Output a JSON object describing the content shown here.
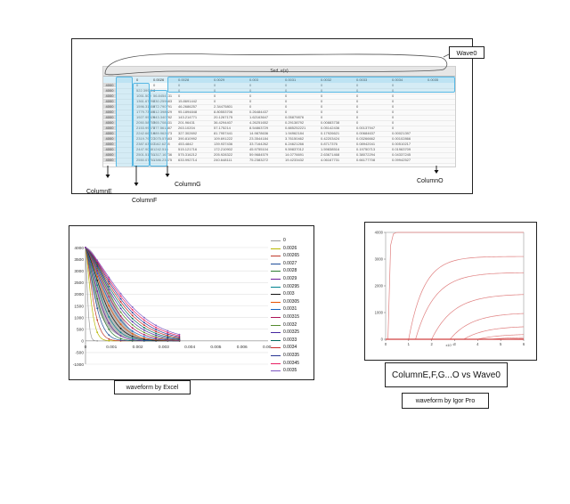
{
  "top_panel": {
    "wave_label": "Wave0",
    "sheet_header": "Sed. e(s)",
    "column_values": [
      "0",
      "0.0026",
      "0.0028",
      "0.0029",
      "0.003",
      "0.0031",
      "0.0032",
      "0.0033",
      "0.0034",
      "0.0035"
    ],
    "column_labels": {
      "e": "ColumnE",
      "f": "ColumnF",
      "g": "ColumnG",
      "o": "ColumnO"
    },
    "rows": [
      [
        "4000",
        "0",
        "0",
        "0",
        "0",
        "0",
        "0",
        "0",
        "0",
        "0"
      ],
      [
        "4000",
        "522.399914",
        "0",
        "0",
        "0",
        "0",
        "0",
        "0",
        "0",
        "0"
      ],
      [
        "4000",
        "1051.509",
        "56.8454131",
        "0",
        "0",
        "0",
        "0",
        "0",
        "0",
        "0"
      ],
      [
        "4000",
        "1361.67299",
        "230.259683",
        "15.8691442",
        "0",
        "0",
        "0",
        "0",
        "0",
        "0"
      ],
      [
        "4000",
        "1596.31656",
        "372.790791",
        "46.2686257",
        "2.34475801",
        "0",
        "0",
        "0",
        "0",
        "0"
      ],
      [
        "4000",
        "1779.73686",
        "512.398029",
        "95.1894848",
        "8.80553706",
        "0.26484437",
        "0",
        "0",
        "0",
        "0"
      ],
      [
        "4000",
        "1927.99929",
        "643.340782",
        "143.214771",
        "20.1267175",
        "1.62163647",
        "0.05879876",
        "0",
        "0",
        "0"
      ],
      [
        "4000",
        "2050.58755",
        "765.708431",
        "201.96431",
        "36.4294407",
        "4.26251652",
        "0.29138792",
        "0.00883738",
        "0",
        "0"
      ],
      [
        "4000",
        "2153.99673",
        "877.561487",
        "263.10204",
        "57.175214",
        "8.54863729",
        "0.885252221",
        "0.05142436",
        "0.00137947",
        "0"
      ],
      [
        "4000",
        "2242.66216",
        "989.962673",
        "327.302692",
        "81.7957441",
        "14.9878636",
        "1.94962184",
        "0.17926621",
        "0.00684637",
        "0.00021397"
      ],
      [
        "4000",
        "2319.79727",
        "1075.57683",
        "390.810992",
        "109.691222",
        "23.3544184",
        "3.76150462",
        "0.42203424",
        "0.03266662",
        "0.00102866"
      ],
      [
        "4000",
        "2387.63607",
        "1162.6278",
        "453.4842",
        "139.937436",
        "33.7164262",
        "6.24621266",
        "0.8717376",
        "0.08942041",
        "0.00510217"
      ],
      [
        "4000",
        "2447.9088",
        "1242.516",
        "515.121716",
        "172.210902",
        "45.9755104",
        "9.59837012",
        "1.59838516",
        "0.19750713",
        "0.01963709"
      ],
      [
        "4000",
        "2501.51751",
        "1317.16736",
        "575.316212",
        "205.928322",
        "59.9684579",
        "14.0776691",
        "2.63671468",
        "0.38072294",
        "0.04337245"
      ],
      [
        "4000",
        "2550.07761",
        "1386.23475",
        "633.992714",
        "240.648111",
        "75.2383272",
        "19.4233432",
        "4.06167731",
        "0.66177708",
        "0.09942527"
      ]
    ]
  },
  "excel_chart": {
    "caption": "waveform by Excel",
    "chart_data": {
      "type": "line",
      "y_ticks": [
        "4000",
        "3500",
        "3000",
        "2500",
        "2000",
        "1500",
        "1000",
        "500",
        "0",
        "-500",
        "-1000"
      ],
      "x_ticks": [
        "0",
        "0.001",
        "0.002",
        "0.003",
        "0.004",
        "0.005",
        "0.006",
        "0.007"
      ],
      "ylim": [
        -1000,
        4000
      ],
      "xlim": [
        0,
        0.007
      ],
      "grid": true,
      "legend_position": "right",
      "series": [
        {
          "name": "0",
          "color": "#9a9a9a",
          "decay": 3e-05
        },
        {
          "name": "0.0026",
          "color": "#b8b800",
          "decay": 0.00012
        },
        {
          "name": "0.00265",
          "color": "#c0392b",
          "decay": 0.00018
        },
        {
          "name": "0.0027",
          "color": "#1f4e9a",
          "decay": 0.00024
        },
        {
          "name": "0.0028",
          "color": "#2e7d32",
          "decay": 0.0003
        },
        {
          "name": "0.0029",
          "color": "#6a1b9a",
          "decay": 0.00036
        },
        {
          "name": "0.00295",
          "color": "#00838f",
          "decay": 0.00042
        },
        {
          "name": "0.003",
          "color": "#111111",
          "decay": 0.00048
        },
        {
          "name": "0.00305",
          "color": "#e65100",
          "decay": 0.00054
        },
        {
          "name": "0.0031",
          "color": "#1565c0",
          "decay": 0.0006
        },
        {
          "name": "0.00315",
          "color": "#ad1457",
          "decay": 0.00066
        },
        {
          "name": "0.0032",
          "color": "#558b2f",
          "decay": 0.00072
        },
        {
          "name": "0.00325",
          "color": "#4527a0",
          "decay": 0.00078
        },
        {
          "name": "0.0033",
          "color": "#00695c",
          "decay": 0.00084
        },
        {
          "name": "0.0034",
          "color": "#c62828",
          "decay": 0.0009
        },
        {
          "name": "0.00335",
          "color": "#283593",
          "decay": 0.00096
        },
        {
          "name": "0.00345",
          "color": "#e91e63",
          "decay": 0.00102
        },
        {
          "name": "0.0035",
          "color": "#7e57c2",
          "decay": 0.00108
        }
      ]
    }
  },
  "igor_chart": {
    "caption_box": "ColumnE,F,G...O vs Wave0",
    "caption": "waveform by Igor Pro",
    "chart_data": {
      "type": "line",
      "y_ticks": [
        "4000",
        "3000",
        "2000",
        "1000",
        "0"
      ],
      "x_ticks": [
        "0",
        "1",
        "2",
        "3",
        "4",
        "5",
        "6"
      ],
      "x_exponent": "x10⁻³",
      "ylim": [
        0,
        4000
      ],
      "xlim": [
        0,
        6
      ],
      "series": [
        {
          "start": 0.1,
          "level": 4000,
          "k": 6
        },
        {
          "start": 1.0,
          "level": 3100,
          "k": 0.5
        },
        {
          "start": 1.3,
          "level": 2500,
          "k": 0.4
        },
        {
          "start": 2.0,
          "level": 1700,
          "k": 0.35
        },
        {
          "start": 2.8,
          "level": 1000,
          "k": 0.35
        },
        {
          "start": 3.4,
          "level": 500,
          "k": 0.35
        },
        {
          "start": 4.0,
          "level": 200,
          "k": 0.35
        },
        {
          "start": 4.6,
          "level": 80,
          "k": 0.4
        },
        {
          "start": 5.2,
          "level": 30,
          "k": 0.4
        }
      ],
      "color": "#e08080"
    }
  }
}
